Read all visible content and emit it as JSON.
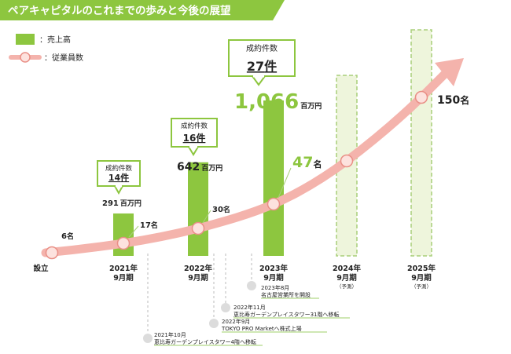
{
  "colors": {
    "banner": "#8dc63f",
    "bar": "#8dc63f",
    "bar_forecast": "#eef5dc",
    "bar_forecast_border": "#a9cf7a",
    "line": "#f4b3ac",
    "marker_fill": "#fde2de",
    "marker_stroke": "#e98f86",
    "callout_border": "#8dc63f",
    "text": "#222222",
    "accent_green": "#8dc63f",
    "event_dot": "#dcdcdc",
    "event_line": "#9fcf6a"
  },
  "chart_data": {
    "type": "bar",
    "title": "ペアキャピタルのこれまでの歩みと今後の展望",
    "categories": [
      {
        "id": "est",
        "label": "設立",
        "label2": "",
        "note": ""
      },
      {
        "id": "y2021",
        "label": "2021年",
        "label2": "9月期",
        "note": ""
      },
      {
        "id": "y2022",
        "label": "2022年",
        "label2": "9月期",
        "note": ""
      },
      {
        "id": "y2023",
        "label": "2023年",
        "label2": "9月期",
        "note": ""
      },
      {
        "id": "y2024",
        "label": "2024年",
        "label2": "9月期",
        "note": "（予測）"
      },
      {
        "id": "y2025",
        "label": "2025年",
        "label2": "9月期",
        "note": "（予測）"
      }
    ],
    "legend": [
      {
        "key": "sales",
        "label": "：売上高"
      },
      {
        "key": "employees",
        "label": "：従業員数"
      }
    ],
    "series": [
      {
        "name": "売上高",
        "unit": "百万円",
        "values": [
          null,
          291,
          642,
          1066,
          null,
          null
        ],
        "labels": [
          null,
          "291",
          "642",
          "1,066",
          null,
          null
        ],
        "forecast": [
          false,
          false,
          false,
          false,
          true,
          true
        ]
      },
      {
        "name": "従業員数",
        "unit": "名",
        "values": [
          6,
          17,
          30,
          47,
          null,
          150
        ],
        "labels": [
          "6",
          "17",
          "30",
          "47",
          null,
          "150"
        ]
      }
    ],
    "contracts": {
      "title": "成約件数",
      "unit": "件",
      "values": [
        null,
        14,
        16,
        27,
        null,
        null
      ]
    },
    "events": [
      {
        "date": "2023年8月",
        "text": "名古屋営業所を開設"
      },
      {
        "date": "2022年11月",
        "text": "恵比寿ガーデンプレイスタワー31階へ移転"
      },
      {
        "date": "2022年9月",
        "text": "TOKYO PRO Marketへ株式上場"
      },
      {
        "date": "2021年10月",
        "text": "恵比寿ガーデンプレイスタワー4階へ移転"
      }
    ]
  }
}
